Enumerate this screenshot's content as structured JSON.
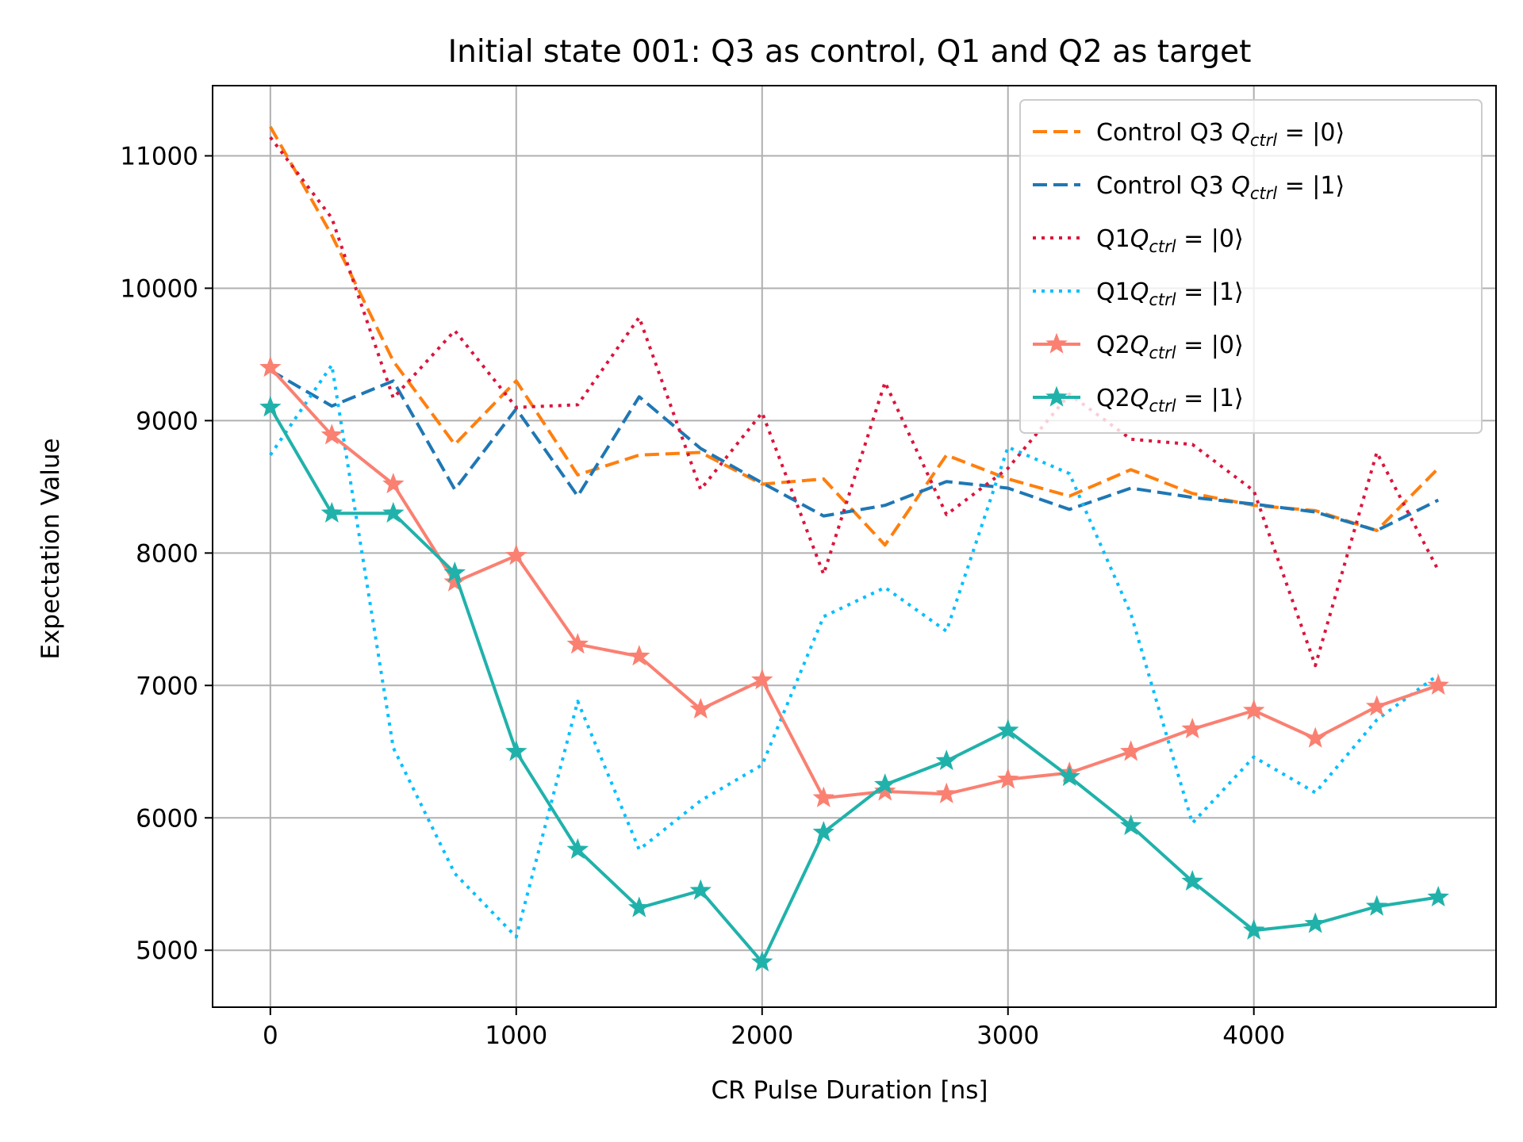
{
  "chart_data": {
    "type": "line",
    "title": "Initial state 001: Q3 as control, Q1 and Q2 as target",
    "xlabel": "CR Pulse Duration [ns]",
    "ylabel": "Expectation Value",
    "xlim": [
      -235,
      4985
    ],
    "ylim": [
      4570,
      11530
    ],
    "xticks": [
      0,
      1000,
      2000,
      3000,
      4000
    ],
    "yticks": [
      5000,
      6000,
      7000,
      8000,
      9000,
      10000,
      11000
    ],
    "xtick_labels": [
      "0",
      "1000",
      "2000",
      "3000",
      "4000"
    ],
    "ytick_labels": [
      "5000",
      "6000",
      "7000",
      "8000",
      "9000",
      "10000",
      "11000"
    ],
    "grid": true,
    "legend_position": "top-right",
    "x": [
      0,
      250,
      500,
      750,
      1000,
      1250,
      1500,
      1750,
      2000,
      2250,
      2500,
      2750,
      3000,
      3250,
      3500,
      3750,
      4000,
      4250,
      4500,
      4750
    ],
    "series": [
      {
        "name": "Control Q3 Q_ctrl=|0⟩",
        "legend_prefix": "Control Q3 ",
        "color": "#ff7f0e",
        "style": "dashed",
        "marker": "none",
        "values": [
          11220,
          10400,
          9450,
          8820,
          9300,
          8590,
          8740,
          8760,
          8520,
          8560,
          8060,
          8740,
          8560,
          8430,
          8630,
          8450,
          8360,
          8320,
          8170,
          8640
        ]
      },
      {
        "name": "Control Q3 Q_ctrl=|1⟩",
        "legend_prefix": "Control Q3 ",
        "color": "#1f77b4",
        "style": "dashed",
        "marker": "none",
        "values": [
          9380,
          9110,
          9300,
          8480,
          9090,
          8430,
          9180,
          8790,
          8530,
          8280,
          8360,
          8540,
          8490,
          8330,
          8490,
          8420,
          8370,
          8310,
          8170,
          8400
        ]
      },
      {
        "name": "Q1 Q_ctrl=|0⟩",
        "legend_prefix": "Q1",
        "color": "#dc143c",
        "style": "dotted",
        "marker": "none",
        "values": [
          11140,
          10530,
          9170,
          9680,
          9100,
          9120,
          9780,
          8480,
          9060,
          7840,
          9290,
          8290,
          8640,
          9200,
          8860,
          8820,
          8470,
          7150,
          8760,
          7870
        ]
      },
      {
        "name": "Q1 Q_ctrl=|1⟩",
        "legend_prefix": "Q1",
        "color": "#00bfff",
        "style": "dotted",
        "marker": "none",
        "values": [
          8740,
          9420,
          6530,
          5580,
          5100,
          6880,
          5760,
          6130,
          6400,
          7520,
          7740,
          7410,
          8800,
          8600,
          7540,
          5960,
          6460,
          6190,
          6740,
          7080
        ]
      },
      {
        "name": "Q2 Q_ctrl=|0⟩",
        "legend_prefix": "Q2",
        "color": "#fa8072",
        "style": "solid",
        "marker": "star",
        "values": [
          9400,
          8890,
          8520,
          7780,
          7980,
          7310,
          7220,
          6820,
          7040,
          6150,
          6200,
          6180,
          6290,
          6340,
          6500,
          6670,
          6810,
          6600,
          6840,
          7000
        ]
      },
      {
        "name": "Q2 Q_ctrl=|1⟩",
        "legend_prefix": "Q2",
        "color": "#20b2aa",
        "style": "solid",
        "marker": "star",
        "values": [
          9100,
          8300,
          8300,
          7850,
          6500,
          5760,
          5320,
          5450,
          4910,
          5890,
          6250,
          6430,
          6660,
          6310,
          5940,
          5520,
          5150,
          5200,
          5330,
          5400
        ]
      }
    ]
  }
}
